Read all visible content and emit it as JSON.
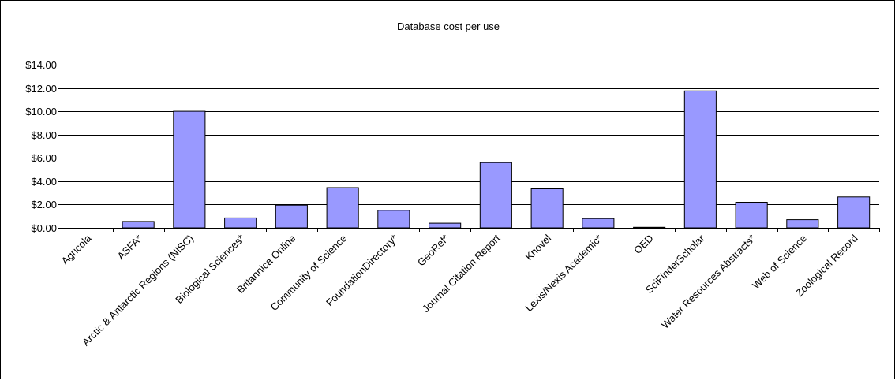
{
  "chart_data": {
    "type": "bar",
    "title": "Database cost per use",
    "xlabel": "",
    "ylabel": "",
    "categories": [
      "Agricola",
      "ASFA*",
      "Arctic & Antarctic Regions (NISC)",
      "Biological Sciences*",
      "Britannica Online",
      "Community of Science",
      "FoundationDirectory*",
      "GeoRef*",
      "Journal Citation Report",
      "Knovel",
      "Lexis/Nexis Academic*",
      "OED",
      "SciFinderScholar",
      "Water Resources Abstracts*",
      "Web of Science",
      "Zoological Record"
    ],
    "values": [
      0.0,
      0.55,
      10.0,
      0.85,
      1.95,
      3.45,
      1.5,
      0.4,
      5.6,
      3.35,
      0.8,
      0.05,
      11.75,
      2.2,
      0.7,
      2.65
    ],
    "ylim": [
      0,
      14
    ],
    "yticks": [
      0,
      2,
      4,
      6,
      8,
      10,
      12,
      14
    ],
    "ytick_labels": [
      "$0.00",
      "$2.00",
      "$4.00",
      "$6.00",
      "$8.00",
      "$10.00",
      "$12.00",
      "$14.00"
    ],
    "grid": true,
    "legend": "none",
    "colors": {
      "bar_fill": "#9999ff",
      "bar_stroke": "#000000",
      "gridline": "#000000",
      "axis": "#000000",
      "background": "#ffffff"
    }
  }
}
